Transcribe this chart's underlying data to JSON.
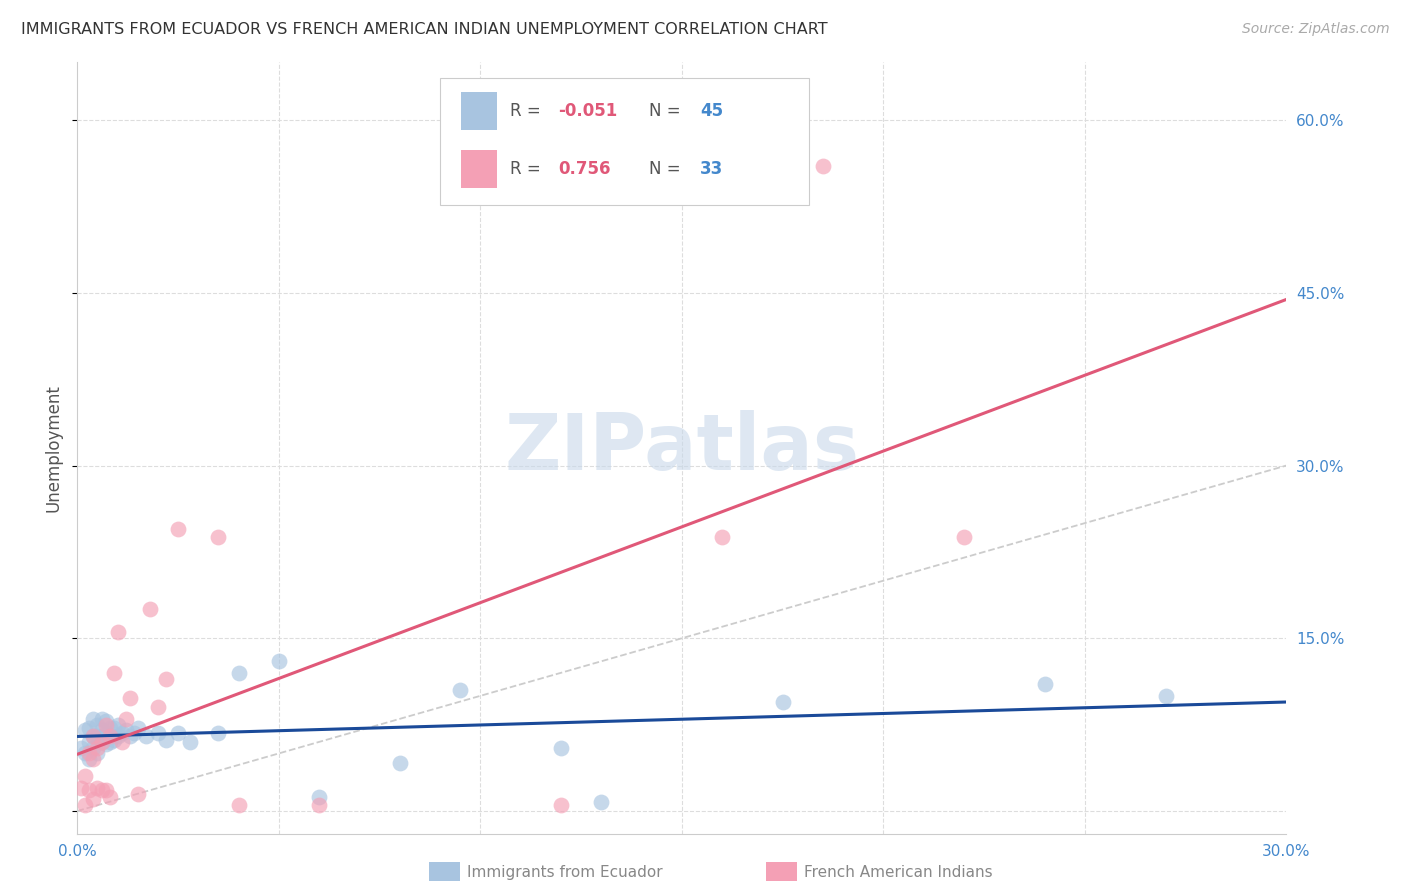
{
  "title": "IMMIGRANTS FROM ECUADOR VS FRENCH AMERICAN INDIAN UNEMPLOYMENT CORRELATION CHART",
  "source": "Source: ZipAtlas.com",
  "ylabel": "Unemployment",
  "xlim": [
    0.0,
    0.3
  ],
  "ylim": [
    -0.02,
    0.65
  ],
  "yticks": [
    0.0,
    0.15,
    0.3,
    0.45,
    0.6
  ],
  "xticks": [
    0.0,
    0.05,
    0.1,
    0.15,
    0.2,
    0.25,
    0.3
  ],
  "ytick_labels_right": [
    "",
    "15.0%",
    "30.0%",
    "45.0%",
    "60.0%"
  ],
  "xtick_labels": [
    "0.0%",
    "",
    "",
    "",
    "",
    "",
    "30.0%"
  ],
  "series1_label": "Immigrants from Ecuador",
  "series1_R": -0.051,
  "series1_N": 45,
  "series1_color": "#a8c4e0",
  "series1_line_color": "#1a4a99",
  "series2_label": "French American Indians",
  "series2_R": 0.756,
  "series2_N": 33,
  "series2_color": "#f4a0b5",
  "series2_line_color": "#e05878",
  "bg_color": "#ffffff",
  "grid_color": "#dddddd",
  "axis_tick_color": "#4488cc",
  "title_color": "#333333",
  "source_color": "#aaaaaa",
  "ylabel_color": "#555555",
  "watermark_text": "ZIPatlas",
  "watermark_color": "#c8d8ea",
  "series1_x": [
    0.001,
    0.002,
    0.002,
    0.003,
    0.003,
    0.003,
    0.004,
    0.004,
    0.004,
    0.005,
    0.005,
    0.005,
    0.006,
    0.006,
    0.006,
    0.007,
    0.007,
    0.007,
    0.008,
    0.008,
    0.009,
    0.009,
    0.01,
    0.01,
    0.011,
    0.012,
    0.013,
    0.014,
    0.015,
    0.017,
    0.02,
    0.022,
    0.025,
    0.028,
    0.035,
    0.04,
    0.05,
    0.06,
    0.08,
    0.095,
    0.12,
    0.13,
    0.175,
    0.24,
    0.27
  ],
  "series1_y": [
    0.055,
    0.05,
    0.07,
    0.045,
    0.06,
    0.072,
    0.055,
    0.065,
    0.08,
    0.05,
    0.065,
    0.075,
    0.06,
    0.07,
    0.08,
    0.058,
    0.068,
    0.078,
    0.06,
    0.072,
    0.062,
    0.072,
    0.065,
    0.075,
    0.068,
    0.07,
    0.065,
    0.068,
    0.072,
    0.065,
    0.068,
    0.062,
    0.068,
    0.06,
    0.068,
    0.12,
    0.13,
    0.012,
    0.042,
    0.105,
    0.055,
    0.008,
    0.095,
    0.11,
    0.1
  ],
  "series2_x": [
    0.001,
    0.002,
    0.002,
    0.003,
    0.003,
    0.004,
    0.004,
    0.004,
    0.005,
    0.005,
    0.006,
    0.006,
    0.007,
    0.007,
    0.008,
    0.008,
    0.009,
    0.01,
    0.011,
    0.012,
    0.013,
    0.015,
    0.018,
    0.02,
    0.022,
    0.025,
    0.035,
    0.04,
    0.06,
    0.12,
    0.16,
    0.185,
    0.22
  ],
  "series2_y": [
    0.02,
    0.005,
    0.03,
    0.018,
    0.05,
    0.01,
    0.045,
    0.065,
    0.02,
    0.055,
    0.018,
    0.06,
    0.018,
    0.075,
    0.012,
    0.065,
    0.12,
    0.155,
    0.06,
    0.08,
    0.098,
    0.015,
    0.175,
    0.09,
    0.115,
    0.245,
    0.238,
    0.005,
    0.005,
    0.005,
    0.238,
    0.56,
    0.238
  ],
  "diag_line_x": [
    0.0,
    0.3
  ],
  "diag_line_y": [
    0.0,
    0.3
  ]
}
